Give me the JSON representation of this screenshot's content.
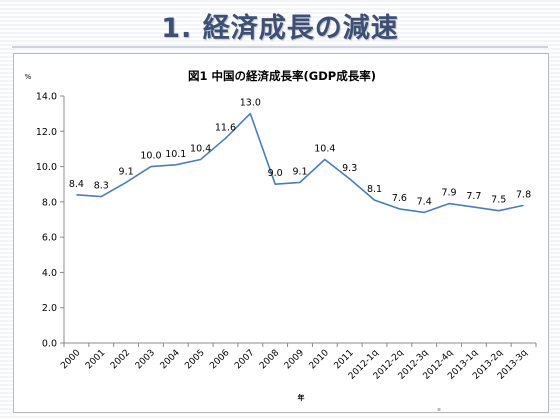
{
  "slide": {
    "title": "1. 経済成長の減速"
  },
  "chart_data": {
    "type": "line",
    "title": "図1  中国の経済成長率(GDP成長率)",
    "xlabel": "年",
    "ylabel": "%",
    "ylim": [
      0,
      14
    ],
    "yticks": [
      "0.0",
      "2.0",
      "4.0",
      "6.0",
      "8.0",
      "10.0",
      "12.0",
      "14.0"
    ],
    "grid": false,
    "legend": "none",
    "line_color": "#4a7ebb",
    "categories": [
      "2000",
      "2001",
      "2002",
      "2003",
      "2004",
      "2005",
      "2006",
      "2007",
      "2008",
      "2009",
      "2010",
      "2011",
      "2012-1q",
      "2012-2q",
      "2012-3q",
      "2012-4q",
      "2013-1q",
      "2013-2q",
      "2013-3q"
    ],
    "values": [
      8.4,
      8.3,
      9.1,
      10.0,
      10.1,
      10.4,
      11.6,
      13.0,
      9.0,
      9.1,
      10.4,
      9.3,
      8.1,
      7.6,
      7.4,
      7.9,
      7.7,
      7.5,
      7.8
    ],
    "labels": [
      "8.4",
      "8.3",
      "9.1",
      "10.0",
      "10.1",
      "10.4",
      "11.6",
      "13.0",
      "9.0",
      "9.1",
      "10.4",
      "9.3",
      "8.1",
      "7.6",
      "7.4",
      "7.9",
      "7.7",
      "7.5",
      "7.8"
    ]
  }
}
